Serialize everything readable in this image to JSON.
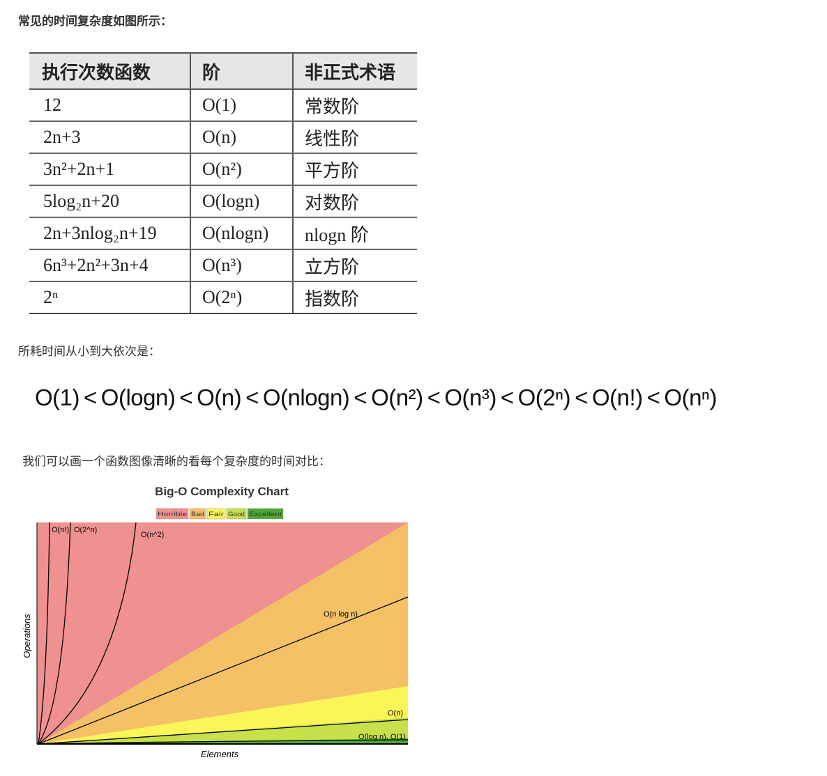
{
  "heading": "常见的时间复杂度如图所示：",
  "table": {
    "header": [
      "执行次数函数",
      "阶",
      "非正式术语"
    ],
    "rows": [
      [
        "12",
        "O(1)",
        "常数阶"
      ],
      [
        "2n+3",
        "O(n)",
        "线性阶"
      ],
      [
        "3n²+2n+1",
        "O(n²)",
        "平方阶"
      ],
      [
        "5log₂n+20",
        "O(logn)",
        "对数阶"
      ],
      [
        "2n+3nlog₂n+19",
        "O(nlogn)",
        "nlogn 阶"
      ],
      [
        "6n³+2n²+3n+4",
        "O(n³)",
        "立方阶"
      ],
      [
        "2ⁿ",
        "O(2ⁿ)",
        "指数阶"
      ]
    ]
  },
  "order_intro": "所耗时间从小到大依次是：",
  "order": {
    "items": [
      "O(1)",
      "O(logn)",
      "O(n)",
      "O(nlogn)",
      "O(n²)",
      "O(n³)",
      "O(2ⁿ)",
      "O(n!)",
      "O(nⁿ)"
    ],
    "separator": "<"
  },
  "chart_intro": "我们可以画一个函数图像清晰的看每个复杂度的时间对比：",
  "complexity_chart": {
    "title": "Big-O Complexity Chart",
    "legend": [
      "Horrible",
      "Bad",
      "Fair",
      "Good",
      "Excellent"
    ],
    "curve_labels": [
      "O(n!)",
      "O(2^n)",
      "O(n^2)",
      "O(n log n)",
      "O(n)",
      "O(log n), O(1)"
    ],
    "x_label": "Elements",
    "y_label": "Operations"
  }
}
